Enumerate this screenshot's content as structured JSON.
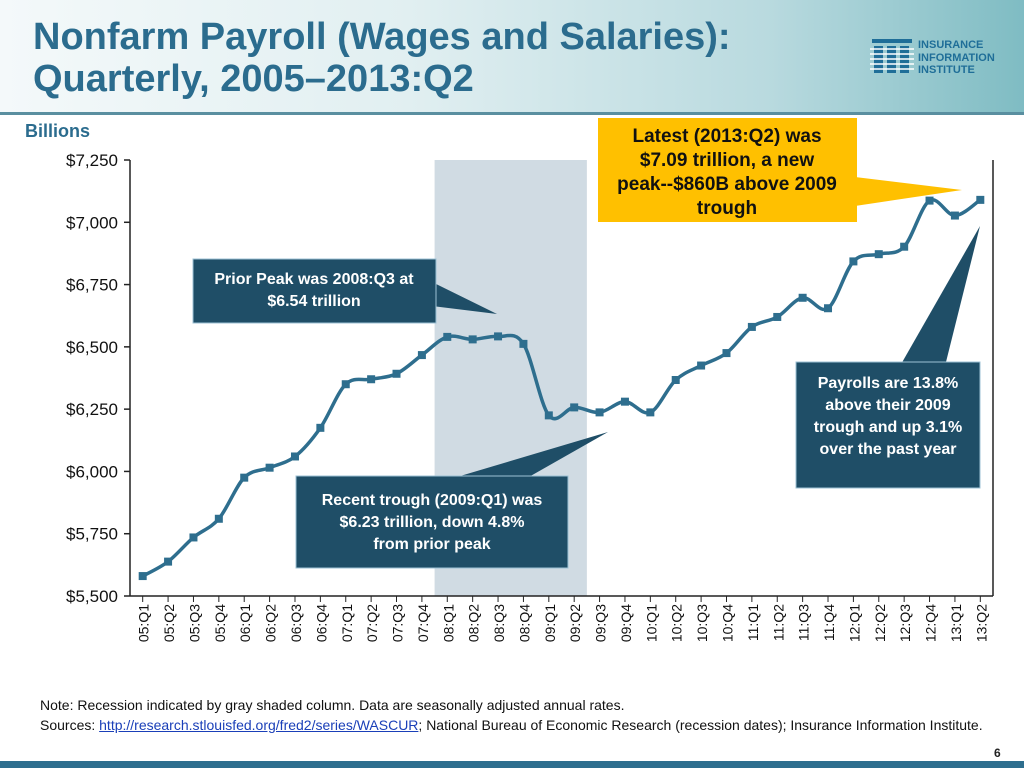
{
  "slide": {
    "title_line1": "Nonfarm Payroll (Wages and Salaries):",
    "title_line2": "Quarterly, 2005–2013:Q2",
    "logo": {
      "line1": "INSURANCE",
      "line2": "INFORMATION",
      "line3": "INSTITUTE",
      "icon": "iii-logo-mark"
    },
    "note": "Note: Recession indicated by gray shaded column. Data are seasonally adjusted annual rates.",
    "sources_prefix": "Sources: ",
    "sources_link": "http://research.stlouisfed.org/fred2/series/WASCUR",
    "sources_suffix": "; National Bureau of Economic Research (recession dates); Insurance Information Institute.",
    "page_number": "6"
  },
  "chart_data": {
    "type": "line",
    "ylabel": "Billions",
    "xlabel": "",
    "ylim": [
      5500,
      7250
    ],
    "yticks": [
      5500,
      5750,
      6000,
      6250,
      6500,
      6750,
      7000,
      7250
    ],
    "ytick_labels": [
      "$5,500",
      "$5,750",
      "$6,000",
      "$6,250",
      "$6,500",
      "$6,750",
      "$7,000",
      "$7,250"
    ],
    "grid": false,
    "categories": [
      "05:Q1",
      "05:Q2",
      "05:Q3",
      "05:Q4",
      "06:Q1",
      "06:Q2",
      "06:Q3",
      "06:Q4",
      "07:Q1",
      "07:Q2",
      "07:Q3",
      "07:Q4",
      "08:Q1",
      "08:Q2",
      "08:Q3",
      "08:Q4",
      "09:Q1",
      "09:Q2",
      "09:Q3",
      "09:Q4",
      "10:Q1",
      "10:Q2",
      "10:Q3",
      "10:Q4",
      "11:Q1",
      "11:Q2",
      "11:Q3",
      "11:Q4",
      "12:Q1",
      "12:Q2",
      "12:Q3",
      "12:Q4",
      "13:Q1",
      "13:Q2"
    ],
    "values": [
      5580,
      5638,
      5735,
      5810,
      5975,
      6015,
      6060,
      6175,
      6350,
      6370,
      6392,
      6467,
      6540,
      6530,
      6542,
      6512,
      6225,
      6257,
      6237,
      6280,
      6237,
      6367,
      6425,
      6475,
      6580,
      6620,
      6697,
      6655,
      6843,
      6872,
      6902,
      7087,
      7027,
      7090
    ],
    "recession": {
      "start": "08:Q1",
      "end": "09:Q2",
      "color": "#d0dbe3"
    },
    "line_color": "#2e6e8e",
    "annotations": {
      "latest": {
        "text": "Latest (2013:Q2) was $7.09 trillion, a new peak--$860B above 2009 trough",
        "color": "#ffc000"
      },
      "prior_peak": {
        "text": "Prior Peak was 2008:Q3 at $6.54 trillion",
        "color": "#1f4e67"
      },
      "trough": {
        "text": "Recent trough (2009:Q1) was $6.23 trillion, down 4.8% from prior peak",
        "color": "#1f4e67"
      },
      "growth": {
        "text": "Payrolls are 13.8% above their 2009 trough and up 3.1% over the past year",
        "color": "#1f4e67"
      }
    }
  }
}
